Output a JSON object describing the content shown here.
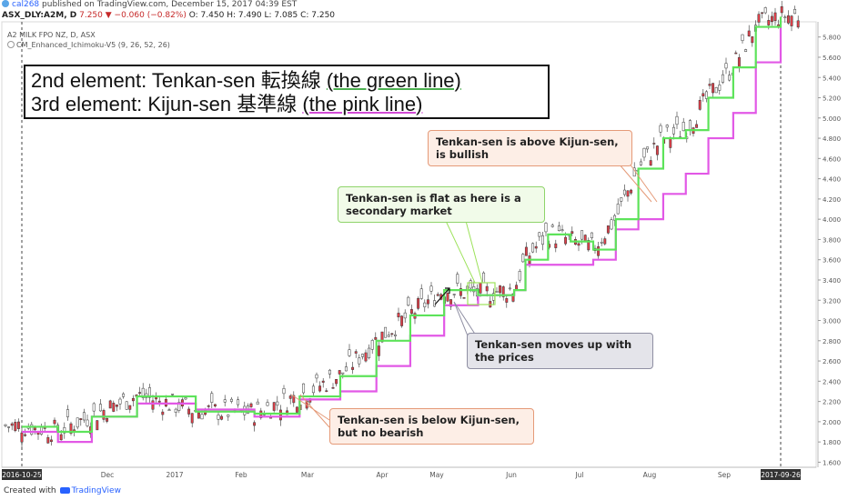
{
  "header": {
    "user": "cal268",
    "published": "published on TradingView.com, December 15, 2017 04:39 EST",
    "symbol": "ASX_DLY:A2M, D",
    "last": "7.250",
    "change": "▼ −0.060 (−0.82%)",
    "open": "O: 7.450",
    "high": "H: 7.490",
    "low": "L: 7.085",
    "close": "C: 7.250",
    "instrument": "A2 MILK FPO NZ, D, ASX",
    "indicator": "CM_Enhanced_Ichimoku-V5 (9, 26, 52, 26)"
  },
  "title_box": {
    "line1_prefix": "2nd element: Tenkan-sen 転換線 ",
    "line1_under": "(the green line)",
    "line2_prefix": "3rd element: Kijun-sen 基準線 ",
    "line2_under": "(the pink line)"
  },
  "callouts": {
    "above": "Tenkan-sen is above Kijun-sen, is bullish",
    "flat": "Tenkan-sen is flat as here is a secondary market",
    "moves": "Tenkan-sen moves up with the prices",
    "below": "Tenkan-sen is below Kijun-sen, but no bearish"
  },
  "footer": {
    "created": "Created with",
    "brand": "TradingView"
  },
  "colors": {
    "tenkan": "#5de35a",
    "kijun": "#e258e6",
    "up_candle": "#ffffff",
    "down_candle": "#e0404a",
    "axis_text": "#555555"
  },
  "chart_data": {
    "type": "line",
    "price_axis": {
      "ylim": [
        1.55,
        5.95
      ],
      "ticks": [
        "5.800",
        "5.600",
        "5.400",
        "5.200",
        "5.000",
        "4.800",
        "4.600",
        "4.400",
        "4.200",
        "4.000",
        "3.800",
        "3.600",
        "3.400",
        "3.200",
        "3.000",
        "2.800",
        "2.600",
        "2.400",
        "2.200",
        "2.000",
        "1.800",
        "1.600"
      ]
    },
    "time_axis": {
      "labels": [
        "2016-10-25",
        "v",
        "Dec",
        "2017",
        "Feb",
        "Mar",
        "Apr",
        "May",
        "Jun",
        "Jul",
        "Aug",
        "Sep",
        "2017-09-26"
      ],
      "markers": [
        "2016-10-25",
        "2017-09-26"
      ]
    },
    "series": [
      {
        "name": "Tenkan-sen",
        "x": [
          "2016-10-25",
          "2016-11-10",
          "2016-11-25",
          "2016-12-15",
          "2017-01-10",
          "2017-02-05",
          "2017-02-25",
          "2017-03-15",
          "2017-03-31",
          "2017-04-15",
          "2017-04-30",
          "2017-05-15",
          "2017-05-31",
          "2017-06-05",
          "2017-06-15",
          "2017-06-25",
          "2017-07-05",
          "2017-07-15",
          "2017-07-25",
          "2017-08-05",
          "2017-08-15",
          "2017-08-25",
          "2017-09-05",
          "2017-09-15",
          "2017-09-26"
        ],
        "values": [
          1.95,
          1.9,
          2.05,
          2.25,
          2.1,
          2.08,
          2.25,
          2.45,
          2.8,
          3.05,
          3.3,
          3.25,
          3.3,
          3.6,
          3.85,
          3.78,
          3.7,
          4.0,
          4.5,
          4.8,
          4.88,
          5.2,
          5.5,
          5.9,
          6.0
        ]
      },
      {
        "name": "Kijun-sen",
        "x": [
          "2016-10-25",
          "2016-11-10",
          "2016-11-25",
          "2016-12-15",
          "2017-01-10",
          "2017-02-05",
          "2017-02-25",
          "2017-03-15",
          "2017-03-31",
          "2017-04-15",
          "2017-04-30",
          "2017-05-15",
          "2017-05-31",
          "2017-06-05",
          "2017-06-15",
          "2017-06-25",
          "2017-07-05",
          "2017-07-15",
          "2017-07-25",
          "2017-08-05",
          "2017-08-15",
          "2017-08-25",
          "2017-09-05",
          "2017-09-15",
          "2017-09-26"
        ],
        "values": [
          1.9,
          1.8,
          2.05,
          2.18,
          2.12,
          2.05,
          2.22,
          2.3,
          2.55,
          2.85,
          3.15,
          3.25,
          3.3,
          3.55,
          3.55,
          3.55,
          3.6,
          3.9,
          4.0,
          4.25,
          4.45,
          4.8,
          5.05,
          5.55,
          5.9
        ]
      }
    ]
  }
}
